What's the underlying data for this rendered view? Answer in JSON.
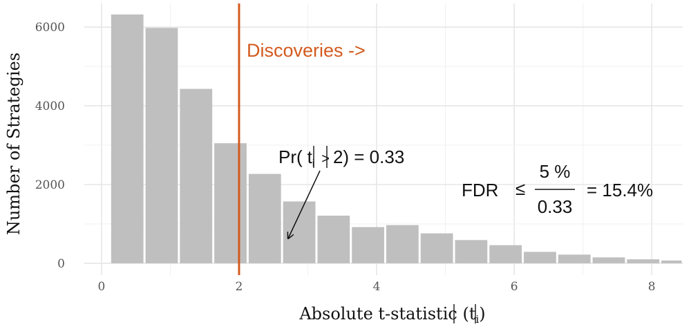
{
  "chart_data": {
    "type": "bar",
    "title": "",
    "xlabel": {
      "prefix": "Absolute t-statistic (",
      "var": "t",
      "sub": "i",
      "suffix": ")"
    },
    "ylabel": "Number of Strategies",
    "xlim": [
      -0.25,
      8.45
    ],
    "ylim": [
      -300,
      6600
    ],
    "x_ticks": [
      0,
      2,
      4,
      6,
      8
    ],
    "y_ticks": [
      0,
      2000,
      4000,
      6000
    ],
    "grid": true,
    "bin_width": 0.5,
    "bars": [
      {
        "x": 0.375,
        "value": 6320
      },
      {
        "x": 0.875,
        "value": 5980
      },
      {
        "x": 1.375,
        "value": 4430
      },
      {
        "x": 1.875,
        "value": 3050
      },
      {
        "x": 2.375,
        "value": 2270
      },
      {
        "x": 2.875,
        "value": 1570
      },
      {
        "x": 3.375,
        "value": 1210
      },
      {
        "x": 3.875,
        "value": 920
      },
      {
        "x": 4.375,
        "value": 970
      },
      {
        "x": 4.875,
        "value": 760
      },
      {
        "x": 5.375,
        "value": 590
      },
      {
        "x": 5.875,
        "value": 460
      },
      {
        "x": 6.375,
        "value": 290
      },
      {
        "x": 6.875,
        "value": 220
      },
      {
        "x": 7.375,
        "value": 150
      },
      {
        "x": 7.875,
        "value": 100
      },
      {
        "x": 8.375,
        "value": 70
      }
    ],
    "threshold": {
      "x": 2,
      "label": "Discoveries ->",
      "color": "#d35a1e"
    },
    "bar_color": "#bfbfbf",
    "annotations": {
      "probability": {
        "prefix": "Pr(",
        "var": "t",
        "sub": "i",
        "cmp": ">",
        "rest": "2) = 0.33"
      },
      "fdr": {
        "label": "FDR",
        "le": "≤",
        "numerator": "5 %",
        "denominator": "0.33",
        "result": "= 15.4%"
      }
    }
  }
}
